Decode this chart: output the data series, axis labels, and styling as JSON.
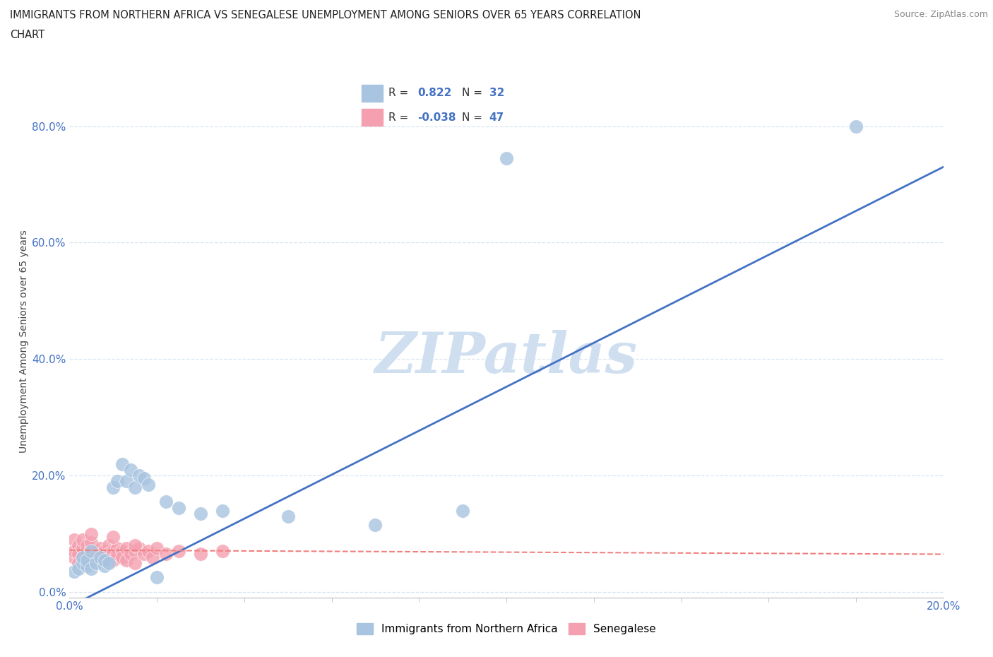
{
  "title_line1": "IMMIGRANTS FROM NORTHERN AFRICA VS SENEGALESE UNEMPLOYMENT AMONG SENIORS OVER 65 YEARS CORRELATION",
  "title_line2": "CHART",
  "source": "Source: ZipAtlas.com",
  "ylabel": "Unemployment Among Seniors over 65 years",
  "xlim": [
    0.0,
    0.2
  ],
  "ylim": [
    -0.01,
    0.87
  ],
  "ytick_values": [
    0.0,
    0.2,
    0.4,
    0.6,
    0.8
  ],
  "xtick_values": [
    0.0,
    0.02,
    0.04,
    0.06,
    0.08,
    0.1,
    0.12,
    0.14,
    0.16,
    0.18,
    0.2
  ],
  "xtick_display": [
    0.0,
    0.2
  ],
  "r_blue": 0.822,
  "n_blue": 32,
  "r_pink": -0.038,
  "n_pink": 47,
  "blue_color": "#a8c4e0",
  "pink_color": "#f4a0b0",
  "blue_line_color": "#4472c4",
  "pink_line_color": "#f08080",
  "watermark_color": "#d0dff0",
  "grid_color": "#d8e4f0",
  "text_color": "#4472c4",
  "blue_scatter": [
    [
      0.001,
      0.035
    ],
    [
      0.002,
      0.04
    ],
    [
      0.003,
      0.05
    ],
    [
      0.003,
      0.06
    ],
    [
      0.004,
      0.045
    ],
    [
      0.004,
      0.055
    ],
    [
      0.005,
      0.04
    ],
    [
      0.005,
      0.07
    ],
    [
      0.006,
      0.05
    ],
    [
      0.007,
      0.06
    ],
    [
      0.008,
      0.045
    ],
    [
      0.008,
      0.055
    ],
    [
      0.009,
      0.05
    ],
    [
      0.01,
      0.18
    ],
    [
      0.011,
      0.19
    ],
    [
      0.012,
      0.22
    ],
    [
      0.013,
      0.19
    ],
    [
      0.014,
      0.21
    ],
    [
      0.015,
      0.18
    ],
    [
      0.016,
      0.2
    ],
    [
      0.017,
      0.195
    ],
    [
      0.018,
      0.185
    ],
    [
      0.022,
      0.155
    ],
    [
      0.025,
      0.145
    ],
    [
      0.03,
      0.135
    ],
    [
      0.035,
      0.14
    ],
    [
      0.05,
      0.13
    ],
    [
      0.07,
      0.115
    ],
    [
      0.09,
      0.14
    ],
    [
      0.02,
      0.025
    ],
    [
      0.1,
      0.745
    ],
    [
      0.18,
      0.8
    ]
  ],
  "pink_scatter": [
    [
      0.001,
      0.09
    ],
    [
      0.001,
      0.06
    ],
    [
      0.001,
      0.07
    ],
    [
      0.002,
      0.08
    ],
    [
      0.002,
      0.065
    ],
    [
      0.002,
      0.05
    ],
    [
      0.003,
      0.075
    ],
    [
      0.003,
      0.06
    ],
    [
      0.003,
      0.09
    ],
    [
      0.004,
      0.07
    ],
    [
      0.004,
      0.055
    ],
    [
      0.004,
      0.08
    ],
    [
      0.005,
      0.065
    ],
    [
      0.005,
      0.075
    ],
    [
      0.005,
      0.085
    ],
    [
      0.005,
      0.055
    ],
    [
      0.006,
      0.07
    ],
    [
      0.006,
      0.06
    ],
    [
      0.007,
      0.075
    ],
    [
      0.007,
      0.065
    ],
    [
      0.008,
      0.07
    ],
    [
      0.008,
      0.055
    ],
    [
      0.009,
      0.08
    ],
    [
      0.009,
      0.065
    ],
    [
      0.01,
      0.07
    ],
    [
      0.01,
      0.055
    ],
    [
      0.011,
      0.075
    ],
    [
      0.011,
      0.065
    ],
    [
      0.012,
      0.07
    ],
    [
      0.012,
      0.06
    ],
    [
      0.013,
      0.075
    ],
    [
      0.013,
      0.055
    ],
    [
      0.014,
      0.065
    ],
    [
      0.015,
      0.07
    ],
    [
      0.015,
      0.05
    ],
    [
      0.016,
      0.075
    ],
    [
      0.017,
      0.065
    ],
    [
      0.018,
      0.07
    ],
    [
      0.019,
      0.06
    ],
    [
      0.02,
      0.075
    ],
    [
      0.022,
      0.065
    ],
    [
      0.025,
      0.07
    ],
    [
      0.03,
      0.065
    ],
    [
      0.035,
      0.07
    ],
    [
      0.005,
      0.1
    ],
    [
      0.01,
      0.095
    ],
    [
      0.015,
      0.08
    ]
  ],
  "blue_trend_x": [
    0.0,
    0.2
  ],
  "blue_trend_y": [
    -0.025,
    0.73
  ],
  "pink_trend_x": [
    0.0,
    0.2
  ],
  "pink_trend_y": [
    0.072,
    0.065
  ]
}
